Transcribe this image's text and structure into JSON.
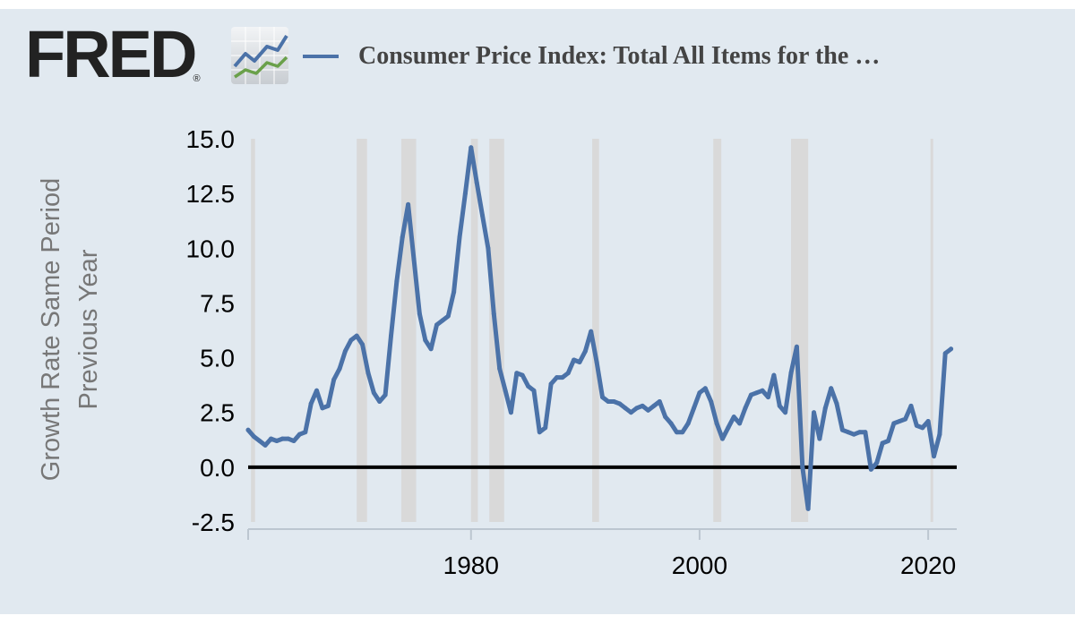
{
  "brand": {
    "name": "FRED",
    "registered": "®",
    "graph_icon": "line-chart-icon"
  },
  "colors": {
    "background": "#e1e9f0",
    "series": "#4b72a8",
    "recession": "#d9d9d9",
    "zero_line": "#000000",
    "axis_title": "#777777"
  },
  "chart_data": {
    "type": "line",
    "title": "Consumer Price Index: Total All Items for the …",
    "ylabel_lines": [
      "Growth Rate Same Period",
      "Previous Year"
    ],
    "xlabel": "",
    "xlim": [
      1960.5,
      2022.5
    ],
    "ylim": [
      -2.5,
      15.0
    ],
    "yticks": [
      {
        "value": 15.0,
        "label": "15.0"
      },
      {
        "value": 12.5,
        "label": "12.5"
      },
      {
        "value": 10.0,
        "label": "10.0"
      },
      {
        "value": 7.5,
        "label": "7.5"
      },
      {
        "value": 5.0,
        "label": "5.0"
      },
      {
        "value": 2.5,
        "label": "2.5"
      },
      {
        "value": 0.0,
        "label": "0.0"
      },
      {
        "value": -2.5,
        "label": "-2.5"
      }
    ],
    "xticks": [
      {
        "value": 1980,
        "label": "1980"
      },
      {
        "value": 2000,
        "label": "2000"
      },
      {
        "value": 2020,
        "label": "2020"
      }
    ],
    "recessions": [
      [
        1960.75,
        1961.1
      ],
      [
        1970.0,
        1970.9
      ],
      [
        1973.9,
        1975.2
      ],
      [
        1980.0,
        1980.6
      ],
      [
        1981.6,
        1982.9
      ],
      [
        1990.6,
        1991.2
      ],
      [
        2001.2,
        2001.9
      ],
      [
        2008.0,
        2009.5
      ],
      [
        2020.2,
        2020.4
      ]
    ],
    "reference_line": 0.0,
    "series": [
      {
        "name": "Consumer Price Index: Total All Items for the …",
        "x": [
          1960.5,
          1961.0,
          1961.5,
          1962.0,
          1962.5,
          1963.0,
          1963.5,
          1964.0,
          1964.5,
          1965.0,
          1965.5,
          1966.0,
          1966.5,
          1967.0,
          1967.5,
          1968.0,
          1968.5,
          1969.0,
          1969.5,
          1970.0,
          1970.5,
          1971.0,
          1971.5,
          1972.0,
          1972.5,
          1973.0,
          1973.5,
          1974.0,
          1974.5,
          1975.0,
          1975.5,
          1976.0,
          1976.5,
          1977.0,
          1977.5,
          1978.0,
          1978.5,
          1979.0,
          1979.5,
          1980.0,
          1980.5,
          1981.0,
          1981.5,
          1982.0,
          1982.5,
          1983.0,
          1983.5,
          1984.0,
          1984.5,
          1985.0,
          1985.5,
          1986.0,
          1986.5,
          1987.0,
          1987.5,
          1988.0,
          1988.5,
          1989.0,
          1989.5,
          1990.0,
          1990.5,
          1991.0,
          1991.5,
          1992.0,
          1992.5,
          1993.0,
          1993.5,
          1994.0,
          1994.5,
          1995.0,
          1995.5,
          1996.0,
          1996.5,
          1997.0,
          1997.5,
          1998.0,
          1998.5,
          1999.0,
          1999.5,
          2000.0,
          2000.5,
          2001.0,
          2001.5,
          2002.0,
          2002.5,
          2003.0,
          2003.5,
          2004.0,
          2004.5,
          2005.0,
          2005.5,
          2006.0,
          2006.5,
          2007.0,
          2007.5,
          2008.0,
          2008.5,
          2009.0,
          2009.5,
          2010.0,
          2010.5,
          2011.0,
          2011.5,
          2012.0,
          2012.5,
          2013.0,
          2013.5,
          2014.0,
          2014.5,
          2015.0,
          2015.5,
          2016.0,
          2016.5,
          2017.0,
          2017.5,
          2018.0,
          2018.5,
          2019.0,
          2019.5,
          2020.0,
          2020.5,
          2021.0,
          2021.5,
          2022.0
        ],
        "values": [
          1.7,
          1.4,
          1.2,
          1.0,
          1.3,
          1.2,
          1.3,
          1.3,
          1.2,
          1.5,
          1.6,
          2.9,
          3.5,
          2.7,
          2.8,
          4.0,
          4.5,
          5.3,
          5.8,
          6.0,
          5.6,
          4.3,
          3.4,
          3.0,
          3.3,
          6.0,
          8.5,
          10.5,
          12.0,
          9.5,
          7.0,
          5.8,
          5.4,
          6.5,
          6.7,
          6.9,
          8.0,
          10.5,
          12.5,
          14.6,
          13.0,
          11.5,
          10.0,
          7.0,
          4.5,
          3.5,
          2.5,
          4.3,
          4.2,
          3.7,
          3.5,
          1.6,
          1.8,
          3.8,
          4.1,
          4.1,
          4.3,
          4.9,
          4.8,
          5.3,
          6.2,
          4.8,
          3.2,
          3.0,
          3.0,
          2.9,
          2.7,
          2.5,
          2.7,
          2.8,
          2.6,
          2.8,
          3.0,
          2.3,
          2.0,
          1.6,
          1.6,
          2.0,
          2.7,
          3.4,
          3.6,
          3.0,
          2.0,
          1.3,
          1.8,
          2.3,
          2.0,
          2.7,
          3.3,
          3.4,
          3.5,
          3.2,
          4.2,
          2.8,
          2.5,
          4.3,
          5.5,
          0.0,
          -1.9,
          2.5,
          1.3,
          2.7,
          3.6,
          2.9,
          1.7,
          1.6,
          1.5,
          1.6,
          1.6,
          -0.1,
          0.2,
          1.1,
          1.2,
          2.0,
          2.1,
          2.2,
          2.8,
          1.9,
          1.8,
          2.1,
          0.5,
          1.5,
          5.2,
          5.4
        ]
      }
    ]
  }
}
